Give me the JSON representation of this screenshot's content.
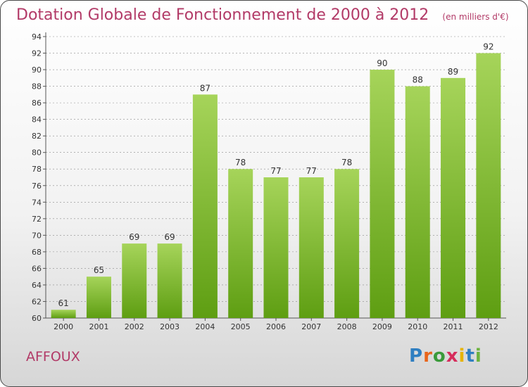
{
  "header": {
    "title": "Dotation Globale de Fonctionnement de 2000 à 2012",
    "unit": "(en milliers d'€)"
  },
  "footer": {
    "commune": "AFFOUX",
    "brand": "Proxiti"
  },
  "colors": {
    "title": "#b23a67",
    "bar_top": "#a6d45a",
    "bar_bottom": "#5e9e12",
    "grid": "#8a8a8a",
    "axis": "#555555"
  },
  "chart_data": {
    "type": "bar",
    "title": "Dotation Globale de Fonctionnement de 2000 à 2012",
    "xlabel": "",
    "ylabel": "",
    "categories": [
      "2000",
      "2001",
      "2002",
      "2003",
      "2004",
      "2005",
      "2006",
      "2007",
      "2008",
      "2009",
      "2010",
      "2011",
      "2012"
    ],
    "values": [
      61,
      65,
      69,
      69,
      87,
      78,
      77,
      77,
      78,
      90,
      88,
      89,
      92
    ],
    "ylim": [
      60,
      94
    ],
    "yticks": [
      60,
      62,
      64,
      66,
      68,
      70,
      72,
      74,
      76,
      78,
      80,
      82,
      84,
      86,
      88,
      90,
      92,
      94
    ],
    "grid": true,
    "data_labels": true
  }
}
